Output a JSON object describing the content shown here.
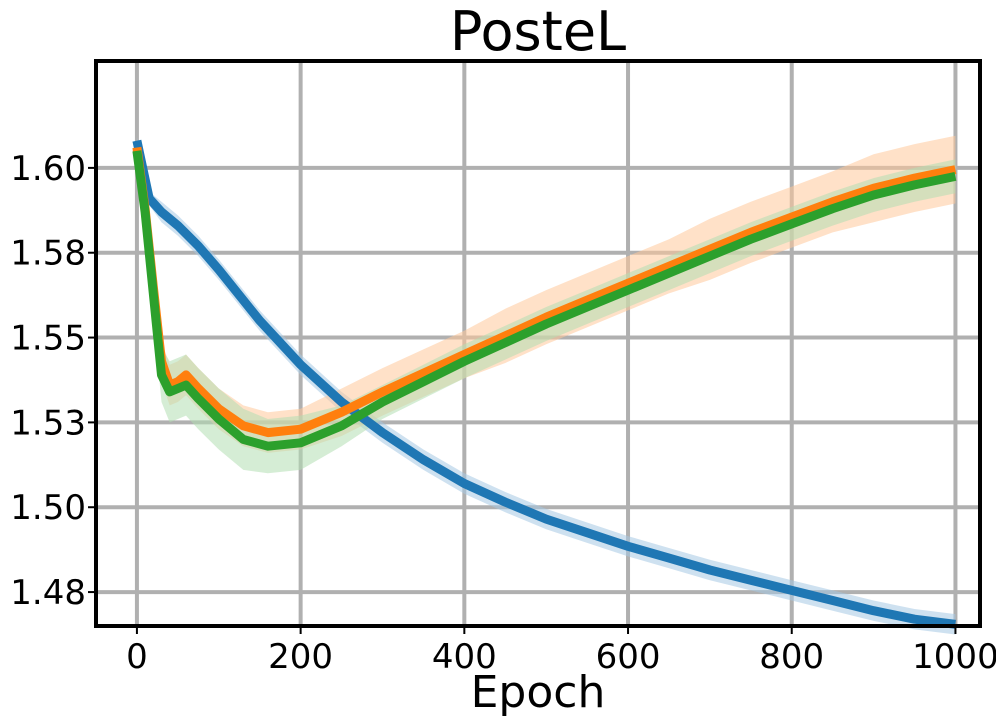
{
  "chart_data": {
    "type": "line",
    "title": "PosteL",
    "xlabel": "Epoch",
    "ylabel": "",
    "xlim": [
      -50,
      1030
    ],
    "ylim": [
      1.465,
      1.6315
    ],
    "xticks": [
      0,
      200,
      400,
      600,
      800,
      1000
    ],
    "xtick_labels": [
      "0",
      "200",
      "400",
      "600",
      "800",
      "1000"
    ],
    "yticks": [
      1.475,
      1.5,
      1.525,
      1.55,
      1.575,
      1.6
    ],
    "ytick_labels": [
      "1.48",
      "1.50",
      "1.53",
      "1.55",
      "1.58",
      "1.60"
    ],
    "grid": true,
    "legend": "none",
    "series": [
      {
        "color": "#1f77b4",
        "band_color": "#a6c8e4",
        "x": [
          0,
          15,
          30,
          50,
          75,
          100,
          150,
          200,
          250,
          300,
          350,
          400,
          450,
          500,
          550,
          600,
          650,
          700,
          750,
          800,
          850,
          900,
          950,
          1000
        ],
        "y": [
          1.608,
          1.591,
          1.587,
          1.583,
          1.577,
          1.57,
          1.555,
          1.542,
          1.531,
          1.522,
          1.514,
          1.507,
          1.5015,
          1.4965,
          1.4925,
          1.4885,
          1.485,
          1.4815,
          1.4785,
          1.4755,
          1.4725,
          1.4695,
          1.467,
          1.4655
        ],
        "band": [
          0.001,
          0.002,
          0.003,
          0.003,
          0.003,
          0.003,
          0.003,
          0.003,
          0.003,
          0.003,
          0.003,
          0.003,
          0.003,
          0.003,
          0.003,
          0.003,
          0.003,
          0.003,
          0.003,
          0.003,
          0.003,
          0.003,
          0.003,
          0.003
        ]
      },
      {
        "color": "#ff7f0e",
        "band_color": "#ffc99a",
        "x": [
          0,
          10,
          20,
          30,
          40,
          50,
          60,
          75,
          100,
          130,
          160,
          200,
          250,
          300,
          350,
          400,
          450,
          500,
          550,
          600,
          650,
          700,
          750,
          800,
          850,
          900,
          950,
          1000
        ],
        "y": [
          1.606,
          1.588,
          1.565,
          1.543,
          1.536,
          1.537,
          1.539,
          1.535,
          1.529,
          1.524,
          1.522,
          1.523,
          1.528,
          1.534,
          1.5395,
          1.545,
          1.5505,
          1.556,
          1.561,
          1.566,
          1.571,
          1.576,
          1.581,
          1.5855,
          1.59,
          1.594,
          1.597,
          1.5995
        ],
        "band": [
          0.001,
          0.004,
          0.005,
          0.006,
          0.006,
          0.006,
          0.006,
          0.006,
          0.006,
          0.006,
          0.006,
          0.006,
          0.007,
          0.007,
          0.007,
          0.007,
          0.008,
          0.008,
          0.008,
          0.008,
          0.008,
          0.009,
          0.009,
          0.009,
          0.009,
          0.01,
          0.01,
          0.01
        ]
      },
      {
        "color": "#2ca02c",
        "band_color": "#b2dfb2",
        "x": [
          0,
          10,
          20,
          30,
          40,
          50,
          60,
          75,
          100,
          130,
          160,
          200,
          250,
          300,
          350,
          400,
          450,
          500,
          550,
          600,
          650,
          700,
          750,
          800,
          850,
          900,
          950,
          1000
        ],
        "y": [
          1.605,
          1.587,
          1.563,
          1.539,
          1.534,
          1.535,
          1.536,
          1.532,
          1.526,
          1.52,
          1.518,
          1.519,
          1.524,
          1.531,
          1.537,
          1.543,
          1.5485,
          1.554,
          1.559,
          1.564,
          1.569,
          1.574,
          1.579,
          1.5835,
          1.588,
          1.592,
          1.595,
          1.5975
        ],
        "band": [
          0.001,
          0.005,
          0.007,
          0.008,
          0.009,
          0.009,
          0.009,
          0.009,
          0.009,
          0.009,
          0.008,
          0.008,
          0.006,
          0.005,
          0.005,
          0.005,
          0.005,
          0.005,
          0.005,
          0.005,
          0.005,
          0.005,
          0.005,
          0.005,
          0.005,
          0.005,
          0.005,
          0.005
        ]
      }
    ]
  }
}
